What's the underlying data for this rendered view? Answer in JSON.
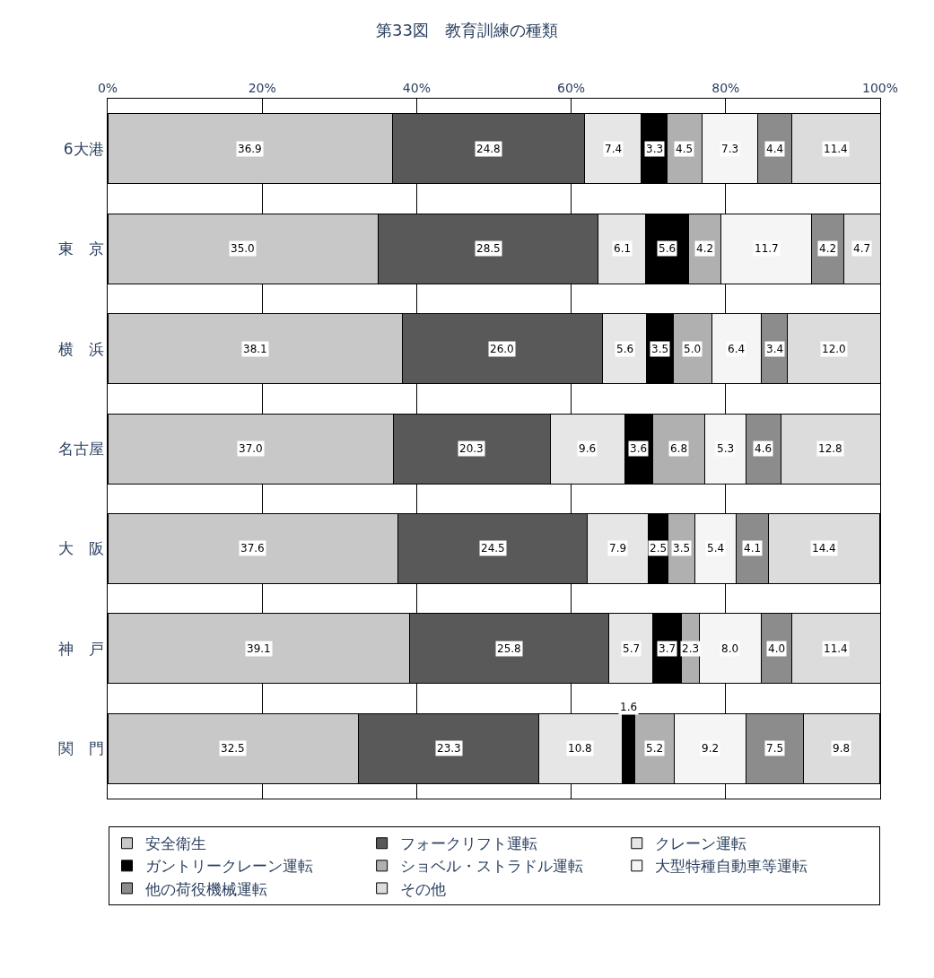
{
  "chart_data": {
    "type": "bar",
    "title": "第33図　教育訓練の種類",
    "orientation": "horizontal",
    "stacked": true,
    "categories": [
      "6大港",
      "東　京",
      "横　浜",
      "名古屋",
      "大　阪",
      "神　戸",
      "関　門"
    ],
    "series": [
      {
        "name": "安全衛生",
        "color": "#c8c8c8",
        "values": [
          36.9,
          35.0,
          38.1,
          37.0,
          37.6,
          39.1,
          32.5
        ],
        "value_labels": [
          "36.9",
          "35.0",
          "38.1",
          "37.0",
          "37.6",
          "39.1",
          "32.5"
        ]
      },
      {
        "name": "フォークリフト運転",
        "color": "#595959",
        "values": [
          24.8,
          28.5,
          26.0,
          20.3,
          24.5,
          25.8,
          23.3
        ],
        "value_labels": [
          "24.8",
          "28.5",
          "26.0",
          "20.3",
          "24.5",
          "25.8",
          "23.3"
        ]
      },
      {
        "name": "クレーン運転",
        "color": "#e6e6e6",
        "values": [
          7.4,
          6.1,
          5.6,
          9.6,
          7.9,
          5.7,
          10.8
        ],
        "value_labels": [
          "7.4",
          "6.1",
          "5.6",
          "9.6",
          "7.9",
          "5.7",
          "10.8"
        ]
      },
      {
        "name": "ガントリークレーン運転",
        "color": "#000000",
        "values": [
          3.3,
          5.6,
          3.5,
          3.6,
          2.5,
          3.7,
          1.6
        ],
        "value_labels": [
          "3.3",
          "5.6",
          "3.5",
          "3.6",
          "2.5",
          "3.7",
          "1.6"
        ]
      },
      {
        "name": "ショベル・ストラドル運転",
        "color": "#b0b0b0",
        "values": [
          4.5,
          4.2,
          5.0,
          6.8,
          3.5,
          2.3,
          5.2
        ],
        "value_labels": [
          "4.5",
          "4.2",
          "5.0",
          "6.8",
          "3.5",
          "2.3",
          "5.2"
        ]
      },
      {
        "name": "大型特種自動車等運転",
        "color": "#f5f5f5",
        "values": [
          7.3,
          11.7,
          6.4,
          5.3,
          5.4,
          8.0,
          9.2
        ],
        "value_labels": [
          "7.3",
          "11.7",
          "6.4",
          "5.3",
          "5.4",
          "8.0",
          "9.2"
        ]
      },
      {
        "name": "他の荷役機械運転",
        "color": "#8c8c8c",
        "values": [
          4.4,
          4.2,
          3.4,
          4.6,
          4.1,
          4.0,
          7.5
        ],
        "value_labels": [
          "4.4",
          "4.2",
          "3.4",
          "4.6",
          "4.1",
          "4.0",
          "7.5"
        ]
      },
      {
        "name": "その他",
        "color": "#dcdcdc",
        "values": [
          11.4,
          4.7,
          12.0,
          12.8,
          14.4,
          11.4,
          9.8
        ],
        "value_labels": [
          "11.4",
          "4.7",
          "12.0",
          "12.8",
          "14.4",
          "11.4",
          "9.8"
        ]
      }
    ],
    "xlim": [
      0,
      100
    ],
    "xticks": [
      {
        "value": 0,
        "label": "0%"
      },
      {
        "value": 20,
        "label": "20%"
      },
      {
        "value": 40,
        "label": "40%"
      },
      {
        "value": 60,
        "label": "60%"
      },
      {
        "value": 80,
        "label": "80%"
      },
      {
        "value": 100,
        "label": "100%"
      }
    ],
    "grid": "x",
    "legend": "bottom"
  }
}
